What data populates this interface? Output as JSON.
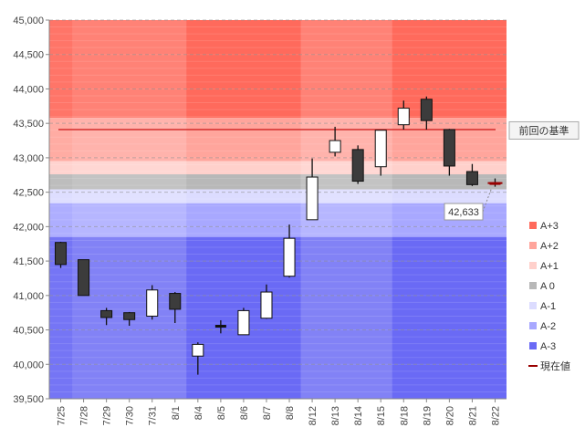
{
  "chart_data": {
    "type": "candlestick",
    "title": "",
    "xlabel": "",
    "ylabel": "",
    "ylim": [
      39500,
      45000
    ],
    "ytick_step": 500,
    "yticks": [
      "39,500",
      "40,000",
      "40,500",
      "41,000",
      "41,500",
      "42,000",
      "42,500",
      "43,000",
      "43,500",
      "44,000",
      "44,500",
      "45,000"
    ],
    "categories": [
      "7/25",
      "7/28",
      "7/29",
      "7/30",
      "7/31",
      "8/1",
      "8/4",
      "8/5",
      "8/6",
      "8/7",
      "8/8",
      "8/12",
      "8/13",
      "8/14",
      "8/15",
      "8/18",
      "8/19",
      "8/20",
      "8/21",
      "8/22"
    ],
    "ohlc": [
      {
        "open": 41770,
        "high": 41780,
        "low": 41400,
        "close": 41450
      },
      {
        "open": 41520,
        "high": 41520,
        "low": 41000,
        "close": 41000
      },
      {
        "open": 40780,
        "high": 40820,
        "low": 40570,
        "close": 40680
      },
      {
        "open": 40750,
        "high": 40760,
        "low": 40560,
        "close": 40650
      },
      {
        "open": 40700,
        "high": 41150,
        "low": 40650,
        "close": 41080
      },
      {
        "open": 41030,
        "high": 41050,
        "low": 40600,
        "close": 40800
      },
      {
        "open": 40120,
        "high": 40320,
        "low": 39850,
        "close": 40290
      },
      {
        "open": 40540,
        "high": 40640,
        "low": 40450,
        "close": 40560
      },
      {
        "open": 40430,
        "high": 40820,
        "low": 40430,
        "close": 40780
      },
      {
        "open": 40670,
        "high": 41160,
        "low": 40660,
        "close": 41050
      },
      {
        "open": 41280,
        "high": 42030,
        "low": 41260,
        "close": 41830
      },
      {
        "open": 42100,
        "high": 42990,
        "low": 42100,
        "close": 42720
      },
      {
        "open": 43080,
        "high": 43450,
        "low": 43020,
        "close": 43250
      },
      {
        "open": 43120,
        "high": 43180,
        "low": 42620,
        "close": 42660
      },
      {
        "open": 42870,
        "high": 43400,
        "low": 42740,
        "close": 43400
      },
      {
        "open": 43480,
        "high": 43830,
        "low": 43410,
        "close": 43720
      },
      {
        "open": 43850,
        "high": 43890,
        "low": 43410,
        "close": 43540
      },
      {
        "open": 43410,
        "high": 43420,
        "low": 42740,
        "close": 42880
      },
      {
        "open": 42800,
        "high": 42910,
        "low": 42590,
        "close": 42610
      },
      {
        "open": 42633,
        "high": 42700,
        "low": 42580,
        "close": 42633
      }
    ],
    "zones": [
      {
        "name": "A+3",
        "from": 43580,
        "to": 45000,
        "color": "#ff6a5c"
      },
      {
        "name": "A+2",
        "from": 42950,
        "to": 43580,
        "color": "#ffa59c"
      },
      {
        "name": "A+1",
        "from": 42760,
        "to": 42950,
        "color": "#ffd0cb"
      },
      {
        "name": "A 0",
        "from": 42540,
        "to": 42760,
        "color": "#b8b8b8"
      },
      {
        "name": "A-1",
        "from": 42340,
        "to": 42540,
        "color": "#dcdcff"
      },
      {
        "name": "A-2",
        "from": 41850,
        "to": 42340,
        "color": "#a8a8ff"
      },
      {
        "name": "A-3",
        "from": 39500,
        "to": 41850,
        "color": "#6a6af5"
      }
    ],
    "reference": {
      "label": "前回の基準",
      "value": 43410,
      "color": "#cc1111"
    },
    "current": {
      "label": "現在値",
      "value": 42633,
      "display": "42,633",
      "color": "#990000"
    },
    "legend": [
      {
        "name": "A+3",
        "color": "#ff6a5c",
        "kind": "box"
      },
      {
        "name": "A+2",
        "color": "#ffa59c",
        "kind": "box"
      },
      {
        "name": "A+1",
        "color": "#ffd0cb",
        "kind": "box"
      },
      {
        "name": "A 0",
        "color": "#b8b8b8",
        "kind": "box"
      },
      {
        "name": "A-1",
        "color": "#dcdcff",
        "kind": "box"
      },
      {
        "name": "A-2",
        "color": "#a8a8ff",
        "kind": "box"
      },
      {
        "name": "A-3",
        "color": "#6a6af5",
        "kind": "box"
      },
      {
        "name": "現在値",
        "color": "#990000",
        "kind": "line"
      }
    ],
    "legend_position": "right",
    "grid": true
  }
}
